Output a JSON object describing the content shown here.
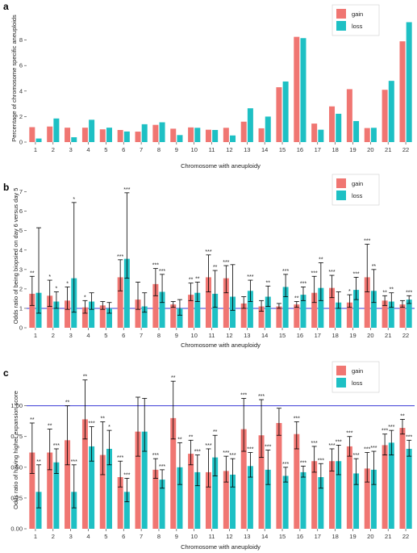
{
  "figure": {
    "colors": {
      "gain": "#f07672",
      "loss": "#1ec0c4",
      "ref_line": "#3a3ad6",
      "error": "#000000"
    }
  },
  "chart_data": [
    {
      "panel": "a",
      "type": "bar",
      "title": "",
      "xlabel": "Chromosome with aneuploidy",
      "ylabel": "Percentage of chromosome specific aneuploids",
      "ylim": [
        0,
        10
      ],
      "yticks": [
        0,
        2,
        4,
        6,
        8
      ],
      "categories": [
        "1",
        "2",
        "3",
        "4",
        "5",
        "6",
        "7",
        "8",
        "9",
        "10",
        "11",
        "12",
        "13",
        "14",
        "15",
        "16",
        "17",
        "18",
        "19",
        "20",
        "21",
        "22"
      ],
      "legend": {
        "position": "top-right",
        "entries": [
          "gain",
          "loss"
        ]
      },
      "grid": false,
      "series": [
        {
          "name": "gain",
          "values": [
            1.17,
            1.22,
            1.13,
            1.13,
            1.0,
            0.95,
            0.82,
            1.35,
            1.05,
            1.15,
            0.97,
            1.12,
            1.6,
            1.08,
            4.3,
            8.25,
            1.45,
            2.8,
            4.15,
            1.1,
            4.1,
            7.9
          ]
        },
        {
          "name": "loss",
          "values": [
            0.28,
            1.85,
            0.38,
            1.75,
            1.13,
            0.83,
            1.4,
            1.55,
            0.55,
            1.12,
            0.95,
            0.52,
            2.65,
            2.0,
            4.75,
            8.15,
            0.97,
            2.22,
            1.65,
            1.12,
            4.8,
            9.4
          ]
        }
      ]
    },
    {
      "panel": "b",
      "type": "bar",
      "title": "",
      "xlabel": "Chromosome with aneuploidy",
      "ylabel": "Odds ratio of being biopsied on day 6 versus day 5",
      "ylim": [
        0,
        7.4
      ],
      "yticks": [
        0,
        1,
        2,
        3,
        4,
        5,
        6,
        7
      ],
      "reference_line": 1,
      "categories": [
        "1",
        "2",
        "3",
        "4",
        "5",
        "6",
        "7",
        "8",
        "9",
        "10",
        "11",
        "12",
        "13",
        "14",
        "15",
        "16",
        "17",
        "18",
        "19",
        "20",
        "21",
        "22"
      ],
      "legend": {
        "position": "top-right",
        "entries": [
          "gain",
          "loss"
        ]
      },
      "grid": false,
      "series": [
        {
          "name": "gain",
          "values": [
            1.75,
            1.65,
            1.4,
            1.05,
            1.15,
            2.6,
            1.45,
            2.25,
            1.2,
            1.7,
            2.6,
            2.55,
            1.25,
            1.1,
            1.1,
            1.2,
            1.8,
            2.05,
            1.3,
            2.6,
            1.4,
            1.2
          ],
          "err_low": [
            1.15,
            1.1,
            0.95,
            0.75,
            0.95,
            1.9,
            0.95,
            1.65,
            1.05,
            1.4,
            1.85,
            1.8,
            1.0,
            0.85,
            1.0,
            1.05,
            1.3,
            1.55,
            1.05,
            1.85,
            1.15,
            1.05
          ],
          "err_high": [
            2.65,
            2.45,
            2.1,
            1.4,
            1.35,
            3.5,
            2.35,
            3.05,
            1.35,
            2.3,
            3.75,
            3.2,
            1.6,
            1.4,
            1.25,
            1.35,
            2.65,
            2.7,
            1.7,
            4.3,
            1.65,
            1.4
          ],
          "significance": [
            "**",
            "*",
            "*",
            "*",
            "",
            "***",
            "",
            "***",
            "",
            "**",
            "***",
            "***",
            "",
            "",
            "",
            "**",
            "***",
            "***",
            "*",
            "***",
            "**",
            ""
          ]
        },
        {
          "name": "loss",
          "values": [
            1.8,
            1.35,
            2.55,
            1.35,
            1.0,
            3.55,
            1.1,
            1.85,
            1.0,
            1.8,
            1.75,
            1.6,
            1.9,
            1.6,
            2.1,
            1.7,
            2.05,
            1.3,
            1.95,
            1.9,
            1.35,
            1.45
          ],
          "err_low": [
            0.75,
            1.0,
            0.8,
            0.95,
            0.75,
            2.55,
            0.8,
            1.3,
            0.65,
            1.35,
            1.05,
            0.9,
            1.35,
            1.1,
            1.6,
            1.4,
            1.4,
            1.0,
            1.45,
            1.3,
            1.05,
            1.25
          ],
          "err_high": [
            5.15,
            1.85,
            6.45,
            1.8,
            1.3,
            6.95,
            1.8,
            2.75,
            1.45,
            2.35,
            2.95,
            3.25,
            2.45,
            2.15,
            2.75,
            2.1,
            3.35,
            1.85,
            2.6,
            3.0,
            1.8,
            1.65
          ],
          "significance": [
            "",
            "*",
            "*",
            "",
            "",
            "***",
            "",
            "***",
            "",
            "**",
            "**",
            "",
            "***",
            "**",
            "***",
            "***",
            "**",
            "",
            "***",
            "**",
            "**",
            "***"
          ]
        }
      ]
    },
    {
      "panel": "c",
      "type": "bar",
      "title": "",
      "xlabel": "Chromosome with aneuploidy",
      "ylabel": "Odds ratio of having higher expansion score",
      "ylim": [
        0,
        1.28
      ],
      "yticks": [
        0.0,
        0.25,
        0.5,
        0.75,
        1.0
      ],
      "ytick_labels": [
        "0.00",
        "0.25",
        "0.50",
        "0.75",
        "1.00"
      ],
      "reference_line": 1,
      "categories": [
        "1",
        "2",
        "3",
        "4",
        "5",
        "6",
        "7",
        "8",
        "9",
        "10",
        "11",
        "12",
        "13",
        "14",
        "15",
        "16",
        "17",
        "18",
        "19",
        "20",
        "21",
        "22"
      ],
      "legend": {
        "position": "top-right",
        "entries": [
          "gain",
          "loss"
        ]
      },
      "grid": false,
      "series": [
        {
          "name": "gain",
          "values": [
            0.62,
            0.62,
            0.72,
            0.89,
            0.6,
            0.42,
            0.79,
            0.48,
            0.9,
            0.61,
            0.46,
            0.47,
            0.81,
            0.76,
            0.86,
            0.77,
            0.55,
            0.55,
            0.67,
            0.49,
            0.68,
            0.82
          ],
          "err_low": [
            0.45,
            0.48,
            0.52,
            0.73,
            0.44,
            0.34,
            0.59,
            0.41,
            0.73,
            0.52,
            0.34,
            0.38,
            0.63,
            0.58,
            0.76,
            0.65,
            0.46,
            0.47,
            0.59,
            0.38,
            0.6,
            0.77
          ],
          "err_high": [
            0.86,
            0.81,
            1.0,
            1.21,
            0.87,
            0.55,
            1.07,
            0.57,
            1.2,
            0.72,
            0.65,
            0.59,
            1.06,
            1.05,
            0.98,
            0.87,
            0.67,
            0.65,
            0.75,
            0.62,
            0.77,
            0.89
          ],
          "significance": [
            "**",
            "**",
            "**",
            "**",
            "**",
            "***",
            "",
            "***",
            "**",
            "**",
            "***",
            "***",
            "***",
            "***",
            "",
            "***",
            "***",
            "***",
            "***",
            "***",
            "***",
            "**"
          ]
        },
        {
          "name": "loss",
          "values": [
            0.3,
            0.54,
            0.3,
            0.67,
            0.65,
            0.3,
            0.79,
            0.4,
            0.5,
            0.46,
            0.58,
            0.44,
            0.51,
            0.48,
            0.43,
            0.46,
            0.42,
            0.55,
            0.45,
            0.48,
            0.7,
            0.65
          ],
          "err_low": [
            0.17,
            0.45,
            0.17,
            0.55,
            0.52,
            0.22,
            0.63,
            0.33,
            0.36,
            0.35,
            0.43,
            0.34,
            0.42,
            0.36,
            0.38,
            0.42,
            0.33,
            0.44,
            0.36,
            0.36,
            0.6,
            0.59
          ],
          "err_high": [
            0.52,
            0.65,
            0.52,
            0.83,
            0.8,
            0.41,
            1.06,
            0.48,
            0.7,
            0.6,
            0.76,
            0.57,
            0.62,
            0.64,
            0.5,
            0.51,
            0.53,
            0.68,
            0.57,
            0.63,
            0.8,
            0.72
          ],
          "significance": [
            "**",
            "***",
            "***",
            "***",
            "*",
            "***",
            "",
            "***",
            "**",
            "***",
            "**",
            "***",
            "***",
            "***",
            "***",
            "***",
            "***",
            "***",
            "***",
            "***",
            "***",
            "***"
          ]
        }
      ]
    }
  ]
}
